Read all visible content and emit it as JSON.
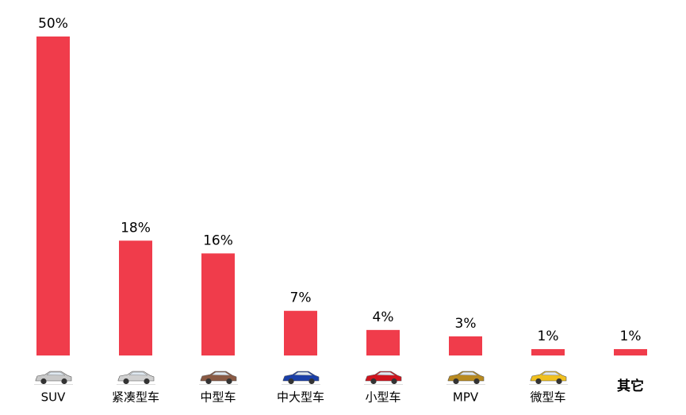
{
  "chart_data": {
    "type": "bar",
    "categories": [
      "SUV",
      "紧凑型车",
      "中型车",
      "中大型车",
      "小型车",
      "MPV",
      "微型车",
      "其它"
    ],
    "values": [
      50,
      18,
      16,
      7,
      4,
      3,
      1,
      1
    ],
    "value_labels": [
      "50%",
      "18%",
      "16%",
      "7%",
      "4%",
      "3%",
      "1%",
      "1%"
    ],
    "color": "#f03c4b"
  }
}
